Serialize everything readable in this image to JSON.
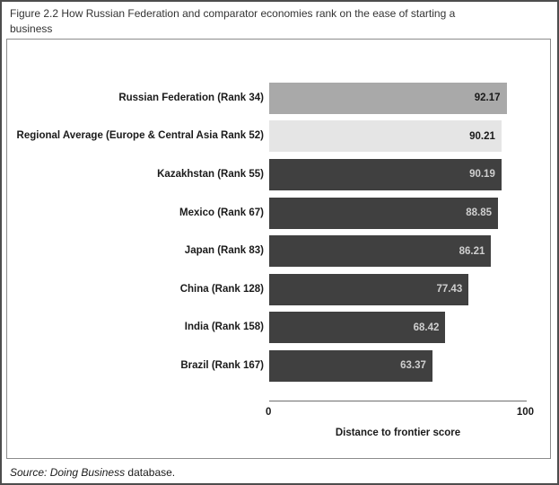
{
  "figure": {
    "title_line1": "Figure 2.2 How Russian Federation and comparator economies rank on the ease of starting a",
    "title_line2": "business",
    "source_italic": "Source: Doing Business",
    "source_regular": " database."
  },
  "chart_data": {
    "type": "bar",
    "orientation": "horizontal",
    "title": "Figure 2.2 How Russian Federation and comparator economies rank on the ease of starting a business",
    "categories": [
      "Russian Federation (Rank 34)",
      "Regional Average (Europe & Central Asia Rank 52)",
      "Kazakhstan (Rank 55)",
      "Mexico (Rank 67)",
      "Japan (Rank 83)",
      "China (Rank 128)",
      "India (Rank 158)",
      "Brazil (Rank 167)"
    ],
    "values": [
      92.17,
      90.21,
      90.19,
      88.85,
      86.21,
      77.43,
      68.42,
      63.37
    ],
    "value_labels": [
      "92.17",
      "90.21",
      "90.19",
      "88.85",
      "86.21",
      "77.43",
      "68.42",
      "63.37"
    ],
    "bar_colors": [
      "#a9a9a9",
      "#e5e5e5",
      "#404040",
      "#404040",
      "#404040",
      "#404040",
      "#404040",
      "#404040"
    ],
    "value_text_colors": [
      "#1a1a1a",
      "#1a1a1a",
      "#cfcfcf",
      "#cfcfcf",
      "#cfcfcf",
      "#cfcfcf",
      "#cfcfcf",
      "#cfcfcf"
    ],
    "xlabel": "Distance to frontier score",
    "xlim": [
      0,
      100
    ],
    "x_ticks": [
      "0",
      "100"
    ],
    "grid": false,
    "legend": "none",
    "source": "Source: Doing Business database."
  },
  "colors": {
    "outer_border": "#4d4d4d",
    "box_border": "#8c8c8c",
    "axis_line": "#6e6e6e",
    "title_text": "#333333",
    "label_text": "#1a1a1a"
  }
}
